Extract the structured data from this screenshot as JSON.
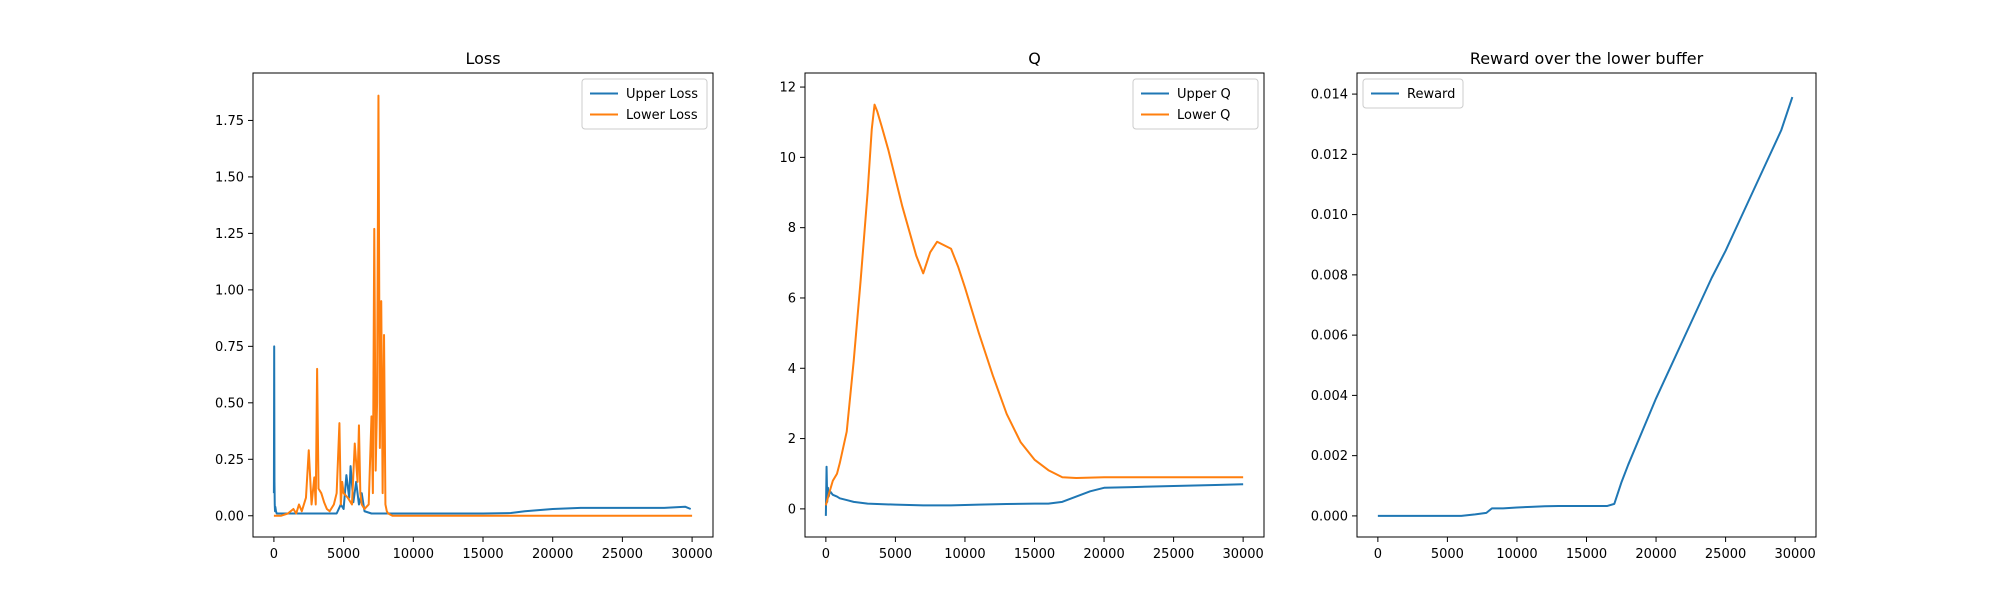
{
  "figure": {
    "background": "#ffffff"
  },
  "colors": {
    "blue": "#1f77b4",
    "orange": "#ff7f0e"
  },
  "chart_data": [
    {
      "type": "line",
      "title": "Loss",
      "xlabel": "",
      "ylabel": "",
      "xlim": [
        -1500,
        31500
      ],
      "ylim": [
        -0.094,
        1.96
      ],
      "xticks": [
        0,
        5000,
        10000,
        15000,
        20000,
        25000,
        30000
      ],
      "xtick_labels": [
        "0",
        "5000",
        "10000",
        "15000",
        "20000",
        "25000",
        "30000"
      ],
      "yticks": [
        0.0,
        0.25,
        0.5,
        0.75,
        1.0,
        1.25,
        1.5,
        1.75
      ],
      "ytick_labels": [
        "0.00",
        "0.25",
        "0.50",
        "0.75",
        "1.00",
        "1.25",
        "1.50",
        "1.75"
      ],
      "legend": "top-right",
      "grid": false,
      "series": [
        {
          "name": "Upper Loss",
          "color": "#1f77b4",
          "x": [
            0,
            20,
            40,
            60,
            80,
            100,
            150,
            200,
            300,
            500,
            1000,
            2000,
            3000,
            4000,
            4500,
            4800,
            5000,
            5200,
            5400,
            5500,
            5700,
            5900,
            6100,
            6300,
            6500,
            7000,
            8000,
            10000,
            12000,
            15000,
            17000,
            18000,
            20000,
            22000,
            24000,
            26000,
            28000,
            29500,
            29900
          ],
          "y": [
            0.1,
            0.75,
            0.15,
            0.05,
            0.02,
            0.04,
            0.02,
            0.01,
            0.01,
            0.01,
            0.01,
            0.01,
            0.01,
            0.01,
            0.01,
            0.05,
            0.03,
            0.18,
            0.08,
            0.22,
            0.06,
            0.15,
            0.05,
            0.1,
            0.02,
            0.01,
            0.01,
            0.01,
            0.01,
            0.01,
            0.012,
            0.02,
            0.03,
            0.035,
            0.035,
            0.035,
            0.035,
            0.04,
            0.03
          ]
        },
        {
          "name": "Lower Loss",
          "color": "#ff7f0e",
          "x": [
            0,
            500,
            1000,
            1400,
            1600,
            1800,
            2000,
            2300,
            2500,
            2700,
            2900,
            3000,
            3100,
            3200,
            3400,
            3600,
            3800,
            4000,
            4300,
            4500,
            4700,
            4800,
            4900,
            5000,
            5300,
            5600,
            5800,
            6000,
            6100,
            6200,
            6300,
            6500,
            6800,
            7000,
            7100,
            7200,
            7300,
            7400,
            7500,
            7600,
            7700,
            7800,
            7900,
            8000,
            8100,
            8200,
            8500,
            9000,
            10000,
            12000,
            15000,
            20000,
            25000,
            30000
          ],
          "y": [
            0.0,
            0.0,
            0.01,
            0.03,
            0.01,
            0.05,
            0.02,
            0.08,
            0.29,
            0.05,
            0.17,
            0.05,
            0.65,
            0.12,
            0.1,
            0.06,
            0.03,
            0.02,
            0.05,
            0.1,
            0.41,
            0.05,
            0.15,
            0.1,
            0.08,
            0.05,
            0.32,
            0.15,
            0.4,
            0.1,
            0.05,
            0.03,
            0.05,
            0.44,
            0.1,
            1.27,
            0.2,
            0.5,
            1.86,
            0.3,
            0.95,
            0.1,
            0.8,
            0.05,
            0.02,
            0.01,
            0.0,
            0.0,
            0.0,
            0.0,
            0.0,
            0.0,
            0.0,
            0.0
          ]
        }
      ]
    },
    {
      "type": "line",
      "title": "Q",
      "xlabel": "",
      "ylabel": "",
      "xlim": [
        -1500,
        31500
      ],
      "ylim": [
        -0.8,
        12.4
      ],
      "xticks": [
        0,
        5000,
        10000,
        15000,
        20000,
        25000,
        30000
      ],
      "xtick_labels": [
        "0",
        "5000",
        "10000",
        "15000",
        "20000",
        "25000",
        "30000"
      ],
      "yticks": [
        0,
        2,
        4,
        6,
        8,
        10,
        12
      ],
      "ytick_labels": [
        "0",
        "2",
        "4",
        "6",
        "8",
        "10",
        "12"
      ],
      "legend": "top-right",
      "grid": false,
      "series": [
        {
          "name": "Upper Q",
          "color": "#1f77b4",
          "x": [
            0,
            50,
            100,
            150,
            200,
            300,
            500,
            800,
            1000,
            1500,
            2000,
            3000,
            5000,
            7000,
            9000,
            11000,
            13000,
            15000,
            16000,
            17000,
            18000,
            19000,
            20000,
            22000,
            25000,
            28000,
            30000
          ],
          "y": [
            -0.2,
            1.2,
            0.2,
            0.6,
            0.35,
            0.5,
            0.4,
            0.35,
            0.3,
            0.25,
            0.2,
            0.15,
            0.12,
            0.1,
            0.1,
            0.12,
            0.14,
            0.15,
            0.15,
            0.2,
            0.35,
            0.5,
            0.6,
            0.62,
            0.65,
            0.68,
            0.7
          ]
        },
        {
          "name": "Lower Q",
          "color": "#ff7f0e",
          "x": [
            0,
            200,
            500,
            800,
            1000,
            1500,
            2000,
            2500,
            3000,
            3300,
            3500,
            3700,
            4000,
            4500,
            5000,
            5500,
            6000,
            6500,
            7000,
            7500,
            8000,
            8500,
            9000,
            9500,
            10000,
            11000,
            12000,
            13000,
            14000,
            15000,
            16000,
            17000,
            18000,
            20000,
            22000,
            25000,
            28000,
            30000
          ],
          "y": [
            0.1,
            0.4,
            0.8,
            1.0,
            1.3,
            2.2,
            4.2,
            6.5,
            9.0,
            10.8,
            11.5,
            11.3,
            10.9,
            10.2,
            9.4,
            8.6,
            7.9,
            7.2,
            6.7,
            7.3,
            7.6,
            7.5,
            7.4,
            6.9,
            6.3,
            5.0,
            3.8,
            2.7,
            1.9,
            1.4,
            1.1,
            0.9,
            0.88,
            0.9,
            0.9,
            0.9,
            0.9,
            0.9
          ]
        }
      ]
    },
    {
      "type": "line",
      "title": "Reward over the lower buffer",
      "xlabel": "",
      "ylabel": "",
      "xlim": [
        -1500,
        31500
      ],
      "ylim": [
        -0.0007,
        0.0147
      ],
      "xticks": [
        0,
        5000,
        10000,
        15000,
        20000,
        25000,
        30000
      ],
      "xtick_labels": [
        "0",
        "5000",
        "10000",
        "15000",
        "20000",
        "25000",
        "30000"
      ],
      "yticks": [
        0.0,
        0.002,
        0.004,
        0.006,
        0.008,
        0.01,
        0.012,
        0.014
      ],
      "ytick_labels": [
        "0.000",
        "0.002",
        "0.004",
        "0.006",
        "0.008",
        "0.010",
        "0.012",
        "0.014"
      ],
      "legend": "top-left",
      "grid": false,
      "series": [
        {
          "name": "Reward",
          "color": "#1f77b4",
          "x": [
            0,
            2000,
            4000,
            6000,
            7000,
            7800,
            8200,
            9000,
            10000,
            11000,
            12000,
            13000,
            14000,
            15000,
            16000,
            16500,
            17000,
            17500,
            18000,
            19000,
            20000,
            21000,
            22000,
            23000,
            24000,
            25000,
            26000,
            27000,
            28000,
            29000,
            29800
          ],
          "y": [
            0.0,
            0.0,
            0.0,
            0.0,
            5e-05,
            0.0001,
            0.00025,
            0.00025,
            0.00028,
            0.0003,
            0.00032,
            0.00033,
            0.00033,
            0.00033,
            0.00033,
            0.00033,
            0.0004,
            0.0011,
            0.0017,
            0.0028,
            0.0039,
            0.0049,
            0.0059,
            0.0069,
            0.0079,
            0.0088,
            0.0098,
            0.0108,
            0.0118,
            0.0128,
            0.0139
          ]
        }
      ]
    }
  ]
}
